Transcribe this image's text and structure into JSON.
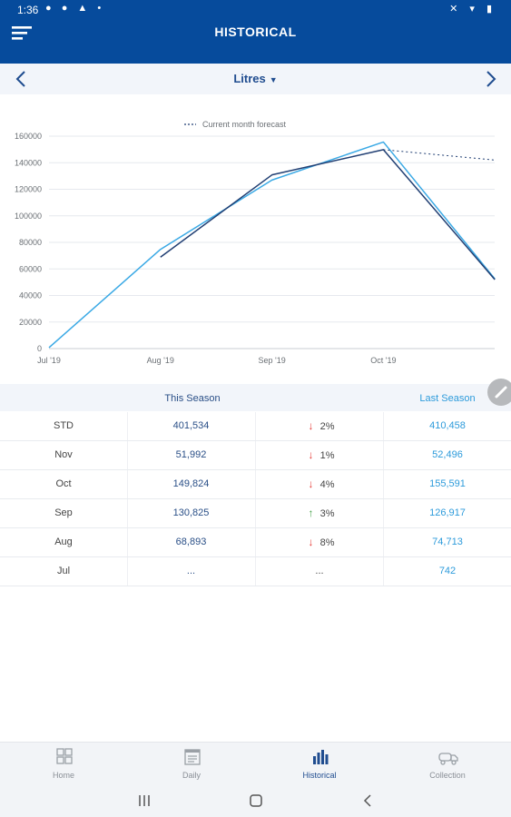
{
  "status_bar": {
    "time": "1:36",
    "left_icons": "● ● ▲ •",
    "right_icons": "✕ ▾ ▮"
  },
  "header": {
    "title": "HISTORICAL"
  },
  "selector": {
    "label": "Litres",
    "caret": "▼"
  },
  "chart_data": {
    "type": "line",
    "title": "",
    "legend": [
      "Current month forecast"
    ],
    "legend_position": "top-center",
    "x_ticks": [
      "Jul '19",
      "Aug '19",
      "Sep '19",
      "Oct '19"
    ],
    "y_ticks": [
      "0",
      "20000",
      "40000",
      "60000",
      "80000",
      "100000",
      "120000",
      "140000",
      "160000"
    ],
    "ylim": [
      0,
      160000
    ],
    "grid": true,
    "series": [
      {
        "color": "#3aa9e5",
        "x": [
          0,
          1,
          2,
          3,
          4
        ],
        "values": [
          742,
          74713,
          126917,
          155591,
          52496
        ]
      },
      {
        "color": "#213f73",
        "x": [
          1,
          2,
          3,
          4
        ],
        "values": [
          68893,
          130825,
          149824,
          51992
        ]
      },
      {
        "name": "Current month forecast",
        "color": "#213f73",
        "dashed": true,
        "x": [
          3,
          4
        ],
        "values": [
          149824,
          142000
        ]
      }
    ]
  },
  "table": {
    "headers": [
      "This Season",
      "Last Season"
    ],
    "rows": [
      {
        "label": "STD",
        "this": "401,534",
        "dir": "down",
        "pct": "2%",
        "last": "410,458"
      },
      {
        "label": "Nov",
        "this": "51,992",
        "dir": "down",
        "pct": "1%",
        "last": "52,496"
      },
      {
        "label": "Oct",
        "this": "149,824",
        "dir": "down",
        "pct": "4%",
        "last": "155,591"
      },
      {
        "label": "Sep",
        "this": "130,825",
        "dir": "up",
        "pct": "3%",
        "last": "126,917"
      },
      {
        "label": "Aug",
        "this": "68,893",
        "dir": "down",
        "pct": "8%",
        "last": "74,713"
      },
      {
        "label": "Jul",
        "this": "...",
        "dir": "",
        "pct": "...",
        "last": "742"
      }
    ]
  },
  "tabs": [
    {
      "label": "Home",
      "icon": "grid-icon"
    },
    {
      "label": "Daily",
      "icon": "calendar-icon"
    },
    {
      "label": "Historical",
      "icon": "bar-chart-icon",
      "active": true
    },
    {
      "label": "Collection",
      "icon": "truck-icon"
    }
  ],
  "colors": {
    "primary": "#064b9c",
    "this_season": "#2a4f87",
    "last_season": "#2d9bdb",
    "down": "#e53935",
    "up": "#43a047"
  }
}
